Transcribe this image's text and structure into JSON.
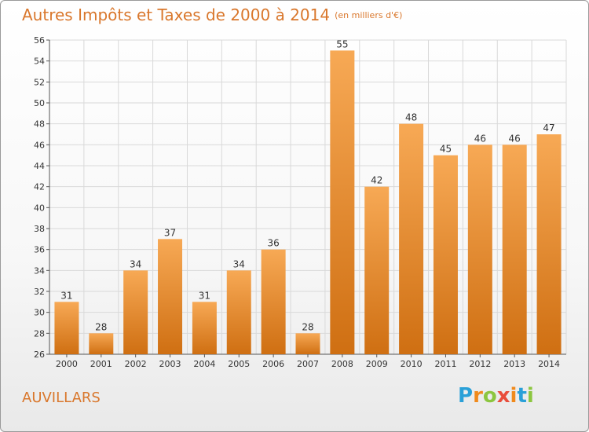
{
  "title": "Autres Impôts et Taxes de 2000 à 2014",
  "subtitle": "(en milliers d'€)",
  "commune": "AUVILLARS",
  "logo": {
    "letters": [
      "P",
      "r",
      "o",
      "x",
      "i",
      "t",
      "i"
    ],
    "colors": [
      "#2aa0d8",
      "#f08a1c",
      "#8cc63f",
      "#e94e3c",
      "#f08a1c",
      "#2aa0d8",
      "#8cc63f"
    ]
  },
  "colors": {
    "accent": "#d9772c",
    "bar_light": "#f7a955",
    "bar_dark": "#cf6f12",
    "grid": "#d9d9d9"
  },
  "chart_data": {
    "type": "bar",
    "categories": [
      "2000",
      "2001",
      "2002",
      "2003",
      "2004",
      "2005",
      "2006",
      "2007",
      "2008",
      "2009",
      "2010",
      "2011",
      "2012",
      "2013",
      "2014"
    ],
    "values": [
      31,
      28,
      34,
      37,
      31,
      34,
      36,
      28,
      55,
      42,
      48,
      45,
      46,
      46,
      47
    ],
    "ylim": [
      26,
      56
    ],
    "yticks": [
      26,
      28,
      30,
      32,
      34,
      36,
      38,
      40,
      42,
      44,
      46,
      48,
      50,
      52,
      54,
      56
    ],
    "grid": true,
    "data_labels": true
  }
}
